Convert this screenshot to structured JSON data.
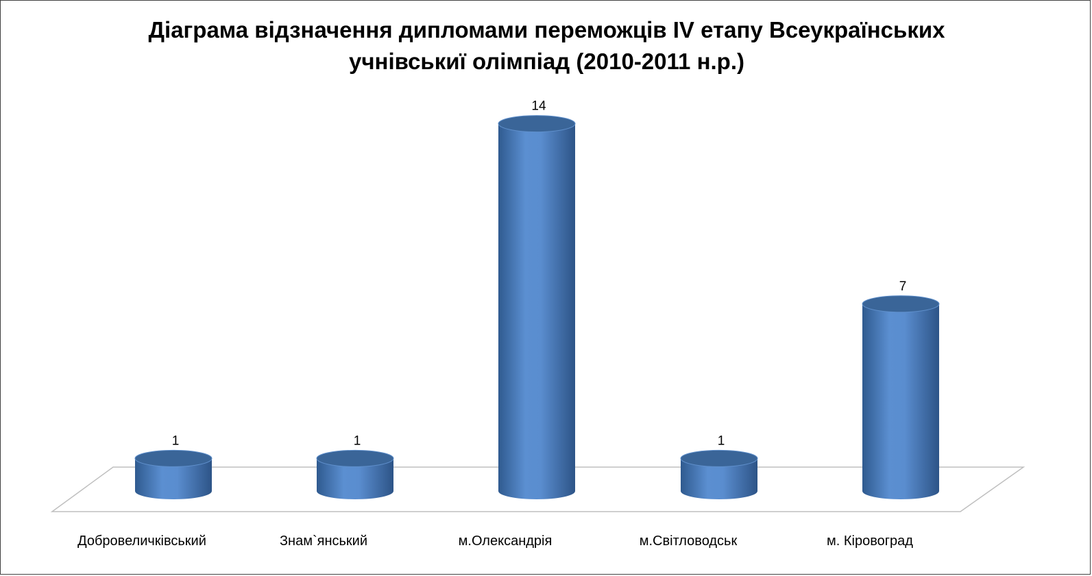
{
  "chart_data": {
    "type": "bar",
    "style": "3d-cylinder",
    "title_line1": "Діаграма відзначення дипломами переможців IV етапу Всеукраїнських",
    "title_line2": "учнівськиї олімпіад (2010-2011 н.р.)",
    "categories": [
      "Добровеличківський",
      "Знам`янський",
      "м.Олександрія",
      "м.Світловодськ",
      "м. Кіровоград"
    ],
    "values": [
      1,
      1,
      14,
      1,
      7
    ],
    "data_labels": [
      "1",
      "1",
      "14",
      "1",
      "7"
    ],
    "xlabel": "",
    "ylabel": "",
    "ylim": [
      0,
      14
    ],
    "grid": false,
    "legend": "none",
    "colors": {
      "bar_body": "#4f81bd",
      "bar_top": "#3a6598",
      "floor_line": "#bfbfbf",
      "frame": "#404040"
    }
  }
}
